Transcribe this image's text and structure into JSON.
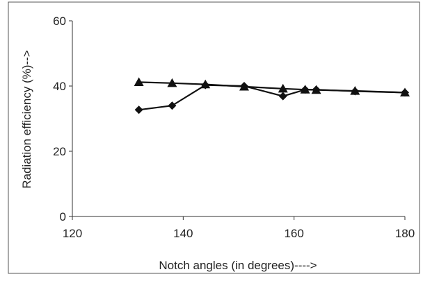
{
  "chart_data": {
    "type": "line",
    "title": "",
    "xlabel": "Notch angles (in degrees)---->",
    "ylabel": "Radiation efficiency (%)-->",
    "xlim": [
      120,
      180
    ],
    "ylim": [
      0,
      60
    ],
    "x_ticks": [
      120,
      140,
      160,
      180
    ],
    "y_ticks": [
      0,
      20,
      40,
      60
    ],
    "grid": false,
    "legend": "none",
    "series": [
      {
        "marker": "diamond",
        "color": "#111111",
        "points": [
          {
            "x": 132,
            "y": 32.7
          },
          {
            "x": 138,
            "y": 34.0
          },
          {
            "x": 144,
            "y": 40.3
          },
          {
            "x": 151,
            "y": 40.0
          },
          {
            "x": 158,
            "y": 36.9
          },
          {
            "x": 162,
            "y": 38.9
          },
          {
            "x": 164,
            "y": 38.9
          },
          {
            "x": 171,
            "y": 38.4
          },
          {
            "x": 180,
            "y": 38.0
          }
        ]
      },
      {
        "marker": "triangle",
        "color": "#111111",
        "points": [
          {
            "x": 132,
            "y": 41.2
          },
          {
            "x": 138,
            "y": 40.9
          },
          {
            "x": 144,
            "y": 40.5
          },
          {
            "x": 151,
            "y": 39.8
          },
          {
            "x": 158,
            "y": 39.2
          },
          {
            "x": 162,
            "y": 38.9
          },
          {
            "x": 164,
            "y": 38.8
          },
          {
            "x": 171,
            "y": 38.5
          },
          {
            "x": 180,
            "y": 38.0
          }
        ]
      }
    ]
  }
}
